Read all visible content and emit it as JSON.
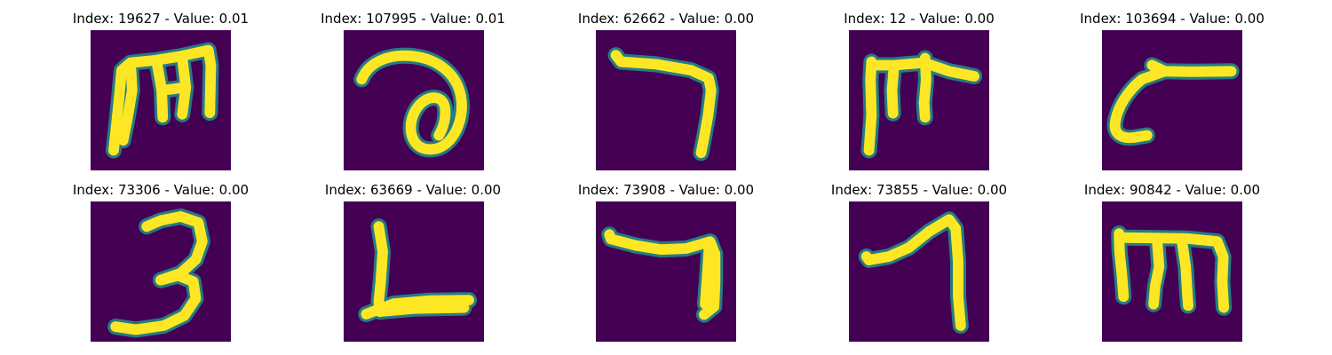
{
  "figure": {
    "background_color": "#440154",
    "stroke_color": "#fde725",
    "edge_color": "#21918c",
    "panels": [
      {
        "title": "Index: 19627 - Value: 0.01",
        "glyph": "m-shape"
      },
      {
        "title": "Index: 107995 - Value: 0.01",
        "glyph": "curl-shape"
      },
      {
        "title": "Index: 62662 - Value: 0.00",
        "glyph": "seven-shape"
      },
      {
        "title": "Index: 12 - Value: 0.00",
        "glyph": "f-shape"
      },
      {
        "title": "Index: 103694 - Value: 0.00",
        "glyph": "hook-shape"
      },
      {
        "title": "Index: 73306 - Value: 0.00",
        "glyph": "three-shape"
      },
      {
        "title": "Index: 63669 - Value: 0.00",
        "glyph": "l-shape"
      },
      {
        "title": "Index: 73908 - Value: 0.00",
        "glyph": "seven-shape-2"
      },
      {
        "title": "Index: 73855 - Value: 0.00",
        "glyph": "one-shape"
      },
      {
        "title": "Index: 90842 - Value: 0.00",
        "glyph": "m-shape-2"
      }
    ]
  }
}
